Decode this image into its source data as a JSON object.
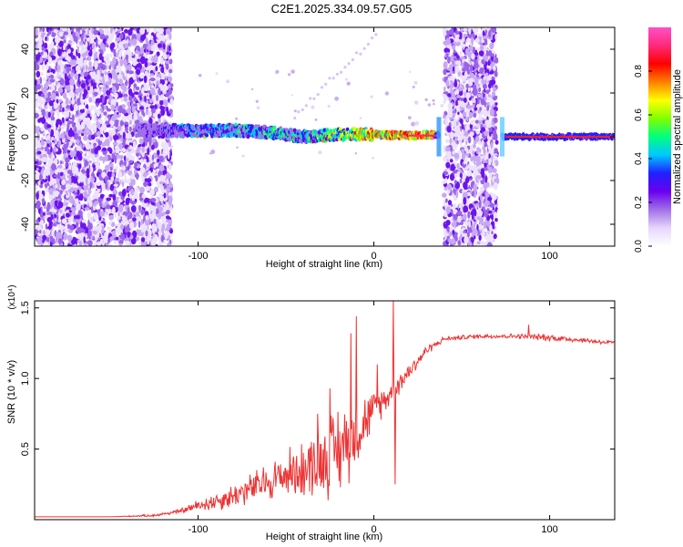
{
  "title": "C2E1.2025.334.09.57.G05",
  "chart_data": [
    {
      "type": "heatmap",
      "title": "C2E1.2025.334.09.57.G05",
      "xlabel": "Height of straight line (km)",
      "ylabel": "Frequency (Hz)",
      "xlim": [
        -193,
        137
      ],
      "ylim": [
        -50,
        50
      ],
      "xticks": [
        -100,
        0,
        100
      ],
      "xtick_labels": [
        "-100",
        "0",
        "100"
      ],
      "yticks": [
        -40,
        -20,
        0,
        20,
        40
      ],
      "ytick_labels": [
        "-40",
        "-20",
        "0",
        "20",
        "40"
      ],
      "colorbar": {
        "label": "Normalized spectral amplitude",
        "range": [
          0,
          1
        ],
        "ticks": [
          0.0,
          0.2,
          0.4,
          0.6,
          0.8
        ],
        "tick_labels": [
          "0.0",
          "0.2",
          "0.4",
          "0.6",
          "0.8"
        ],
        "colors": [
          "#ffffff",
          "#e6d6fa",
          "#a070e8",
          "#6a00f0",
          "#2020ff",
          "#00c8ff",
          "#00ff80",
          "#80ff00",
          "#ffff00",
          "#ff8000",
          "#ff0000",
          "#ff2a7a",
          "#ff50c8"
        ]
      },
      "noise_bands_km": [
        [
          -193,
          -115
        ],
        [
          40,
          70
        ]
      ],
      "signal_trace": {
        "x_km": [
          -135,
          -120,
          -100,
          -80,
          -60,
          -40,
          -20,
          0,
          20,
          35,
          75,
          137
        ],
        "freq_hz": [
          3,
          3,
          2.5,
          3,
          2,
          0,
          1,
          1,
          0.5,
          1,
          0,
          0
        ],
        "amplitude": [
          0.25,
          0.35,
          0.45,
          0.5,
          0.55,
          0.55,
          0.7,
          0.85,
          0.95,
          0.95,
          1.0,
          1.0
        ]
      }
    },
    {
      "type": "line",
      "xlabel": "Height of straight line (km)",
      "ylabel": "SNR (10 * v/v)",
      "scale_label": "(x10⁴)",
      "xlim": [
        -193,
        137
      ],
      "ylim": [
        0,
        1.55
      ],
      "xticks": [
        -100,
        0,
        100
      ],
      "xtick_labels": [
        "-100",
        "0",
        "100"
      ],
      "yticks": [
        0.5,
        1.0,
        1.5
      ],
      "ytick_labels": [
        "0.5",
        "1.0",
        "1.5"
      ],
      "series": [
        {
          "name": "SNR",
          "color": "#ee3333",
          "x": [
            -193,
            -150,
            -125,
            -110,
            -100,
            -90,
            -80,
            -70,
            -60,
            -50,
            -40,
            -30,
            -20,
            -10,
            0,
            10,
            20,
            30,
            40,
            60,
            80,
            100,
            120,
            137
          ],
          "y": [
            0.02,
            0.02,
            0.03,
            0.06,
            0.1,
            0.13,
            0.17,
            0.22,
            0.27,
            0.32,
            0.36,
            0.42,
            0.5,
            0.62,
            0.78,
            0.9,
            1.05,
            1.2,
            1.28,
            1.3,
            1.3,
            1.29,
            1.27,
            1.25
          ],
          "noise_amplitude": [
            0,
            0,
            0.01,
            0.02,
            0.05,
            0.08,
            0.1,
            0.13,
            0.16,
            0.2,
            0.24,
            0.3,
            0.38,
            0.3,
            0.15,
            0.1,
            0.08,
            0.04,
            0.02,
            0.02,
            0.02,
            0.03,
            0.02,
            0.02
          ],
          "peaks": [
            {
              "x": -32,
              "y": 0.75
            },
            {
              "x": -25,
              "y": 0.93
            },
            {
              "x": -13,
              "y": 1.32
            },
            {
              "x": -10,
              "y": 1.44
            },
            {
              "x": 2,
              "y": 1.1
            },
            {
              "x": 11,
              "y": 1.55
            },
            {
              "x": 12,
              "y": 0.25
            },
            {
              "x": 88,
              "y": 1.38
            }
          ]
        }
      ]
    }
  ]
}
